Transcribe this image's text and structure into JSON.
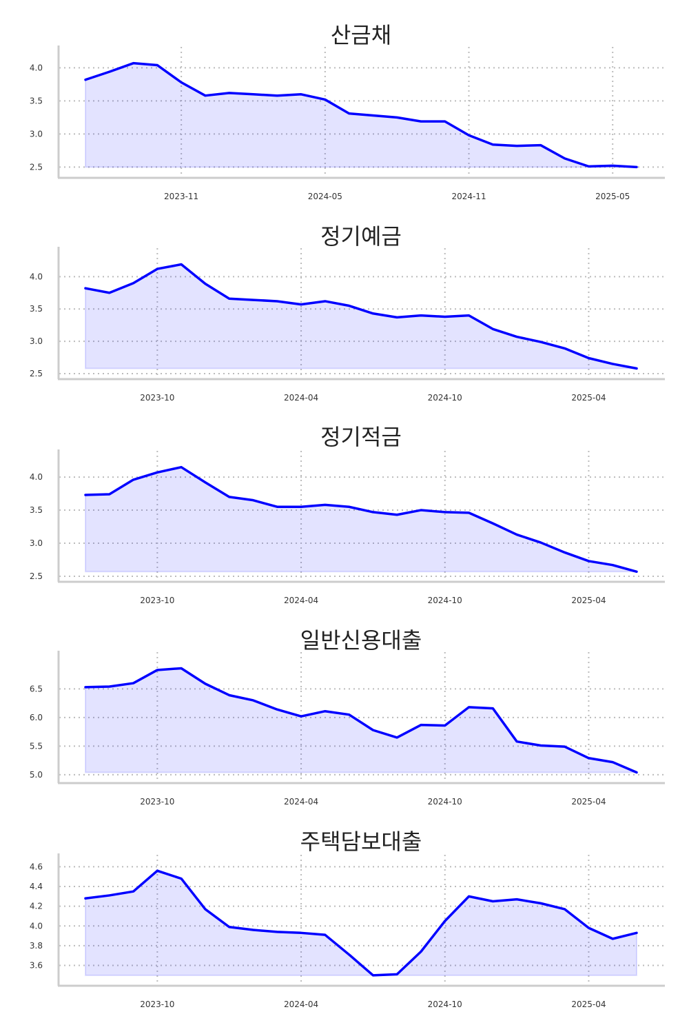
{
  "colors": {
    "line": "#0000ff",
    "fill": "#0000ff",
    "fill_opacity": 0.11,
    "grid": "#bbbbbb",
    "spine": "#cccccc",
    "title": "#222222",
    "tick": "#333333"
  },
  "chart_data": [
    {
      "type": "area",
      "title": "산금채",
      "xlabel": "",
      "ylabel": "",
      "x_start": "2023-07",
      "x_ticks": [
        "2023-11",
        "2024-05",
        "2024-11",
        "2025-05"
      ],
      "x_tick_positions": [
        "2023-11",
        "2024-05",
        "2024-11",
        "2025-05"
      ],
      "y_ticks": [
        "2.5",
        "3.0",
        "3.5",
        "4.0"
      ],
      "ylim": [
        2.42,
        4.15
      ],
      "grid": true,
      "values": [
        3.82,
        3.94,
        4.07,
        4.04,
        3.78,
        3.58,
        3.62,
        3.6,
        3.58,
        3.6,
        3.52,
        3.31,
        3.28,
        3.25,
        3.19,
        3.19,
        2.98,
        2.84,
        2.82,
        2.83,
        2.63,
        2.51,
        2.52,
        2.5
      ]
    },
    {
      "type": "area",
      "title": "정기예금",
      "xlabel": "",
      "ylabel": "",
      "x_start": "2023-07",
      "x_ticks": [
        "2023-10",
        "2024-04",
        "2024-10",
        "2025-04"
      ],
      "x_tick_positions": [
        "2023-10",
        "2024-04",
        "2024-10",
        "2025-04"
      ],
      "y_ticks": [
        "2.5",
        "3.0",
        "3.5",
        "4.0"
      ],
      "ylim": [
        2.5,
        4.27
      ],
      "grid": true,
      "values": [
        3.82,
        3.75,
        3.9,
        4.12,
        4.19,
        3.89,
        3.66,
        3.64,
        3.62,
        3.57,
        3.62,
        3.55,
        3.43,
        3.37,
        3.4,
        3.38,
        3.4,
        3.19,
        3.07,
        2.99,
        2.89,
        2.74,
        2.65,
        2.58
      ]
    },
    {
      "type": "area",
      "title": "정기적금",
      "xlabel": "",
      "ylabel": "",
      "x_start": "2023-07",
      "x_ticks": [
        "2023-10",
        "2024-04",
        "2024-10",
        "2025-04"
      ],
      "x_tick_positions": [
        "2023-10",
        "2024-04",
        "2024-10",
        "2025-04"
      ],
      "y_ticks": [
        "2.5",
        "3.0",
        "3.5",
        "4.0"
      ],
      "ylim": [
        2.5,
        4.23
      ],
      "grid": true,
      "values": [
        3.73,
        3.74,
        3.96,
        4.07,
        4.15,
        3.92,
        3.7,
        3.65,
        3.55,
        3.55,
        3.58,
        3.55,
        3.47,
        3.43,
        3.5,
        3.47,
        3.46,
        3.3,
        3.13,
        3.01,
        2.86,
        2.73,
        2.67,
        2.57
      ]
    },
    {
      "type": "area",
      "title": "일반신용대출",
      "xlabel": "",
      "ylabel": "",
      "x_start": "2023-07",
      "x_ticks": [
        "2023-10",
        "2024-04",
        "2024-10",
        "2025-04"
      ],
      "x_tick_positions": [
        "2023-10",
        "2024-04",
        "2024-10",
        "2025-04"
      ],
      "y_ticks": [
        "5.0",
        "5.5",
        "6.0",
        "6.5"
      ],
      "ylim": [
        4.95,
        6.95
      ],
      "grid": true,
      "values": [
        6.53,
        6.54,
        6.6,
        6.83,
        6.86,
        6.59,
        6.39,
        6.3,
        6.14,
        6.02,
        6.11,
        6.05,
        5.78,
        5.65,
        5.87,
        5.86,
        6.18,
        6.16,
        5.58,
        5.51,
        5.49,
        5.29,
        5.22,
        5.04
      ]
    },
    {
      "type": "area",
      "title": "주택담보대출",
      "xlabel": "",
      "ylabel": "",
      "x_start": "2023-07",
      "x_ticks": [
        "2023-10",
        "2024-04",
        "2024-10",
        "2025-04"
      ],
      "x_tick_positions": [
        "2023-10",
        "2024-04",
        "2024-10",
        "2025-04"
      ],
      "y_ticks": [
        "3.6",
        "3.8",
        "4.0",
        "4.2",
        "4.4",
        "4.6"
      ],
      "ylim": [
        3.45,
        4.61
      ],
      "grid": true,
      "values": [
        4.28,
        4.31,
        4.35,
        4.56,
        4.48,
        4.17,
        3.99,
        3.96,
        3.94,
        3.93,
        3.91,
        3.71,
        3.5,
        3.51,
        3.74,
        4.05,
        4.3,
        4.25,
        4.27,
        4.23,
        4.17,
        3.98,
        3.87,
        3.93
      ]
    }
  ]
}
